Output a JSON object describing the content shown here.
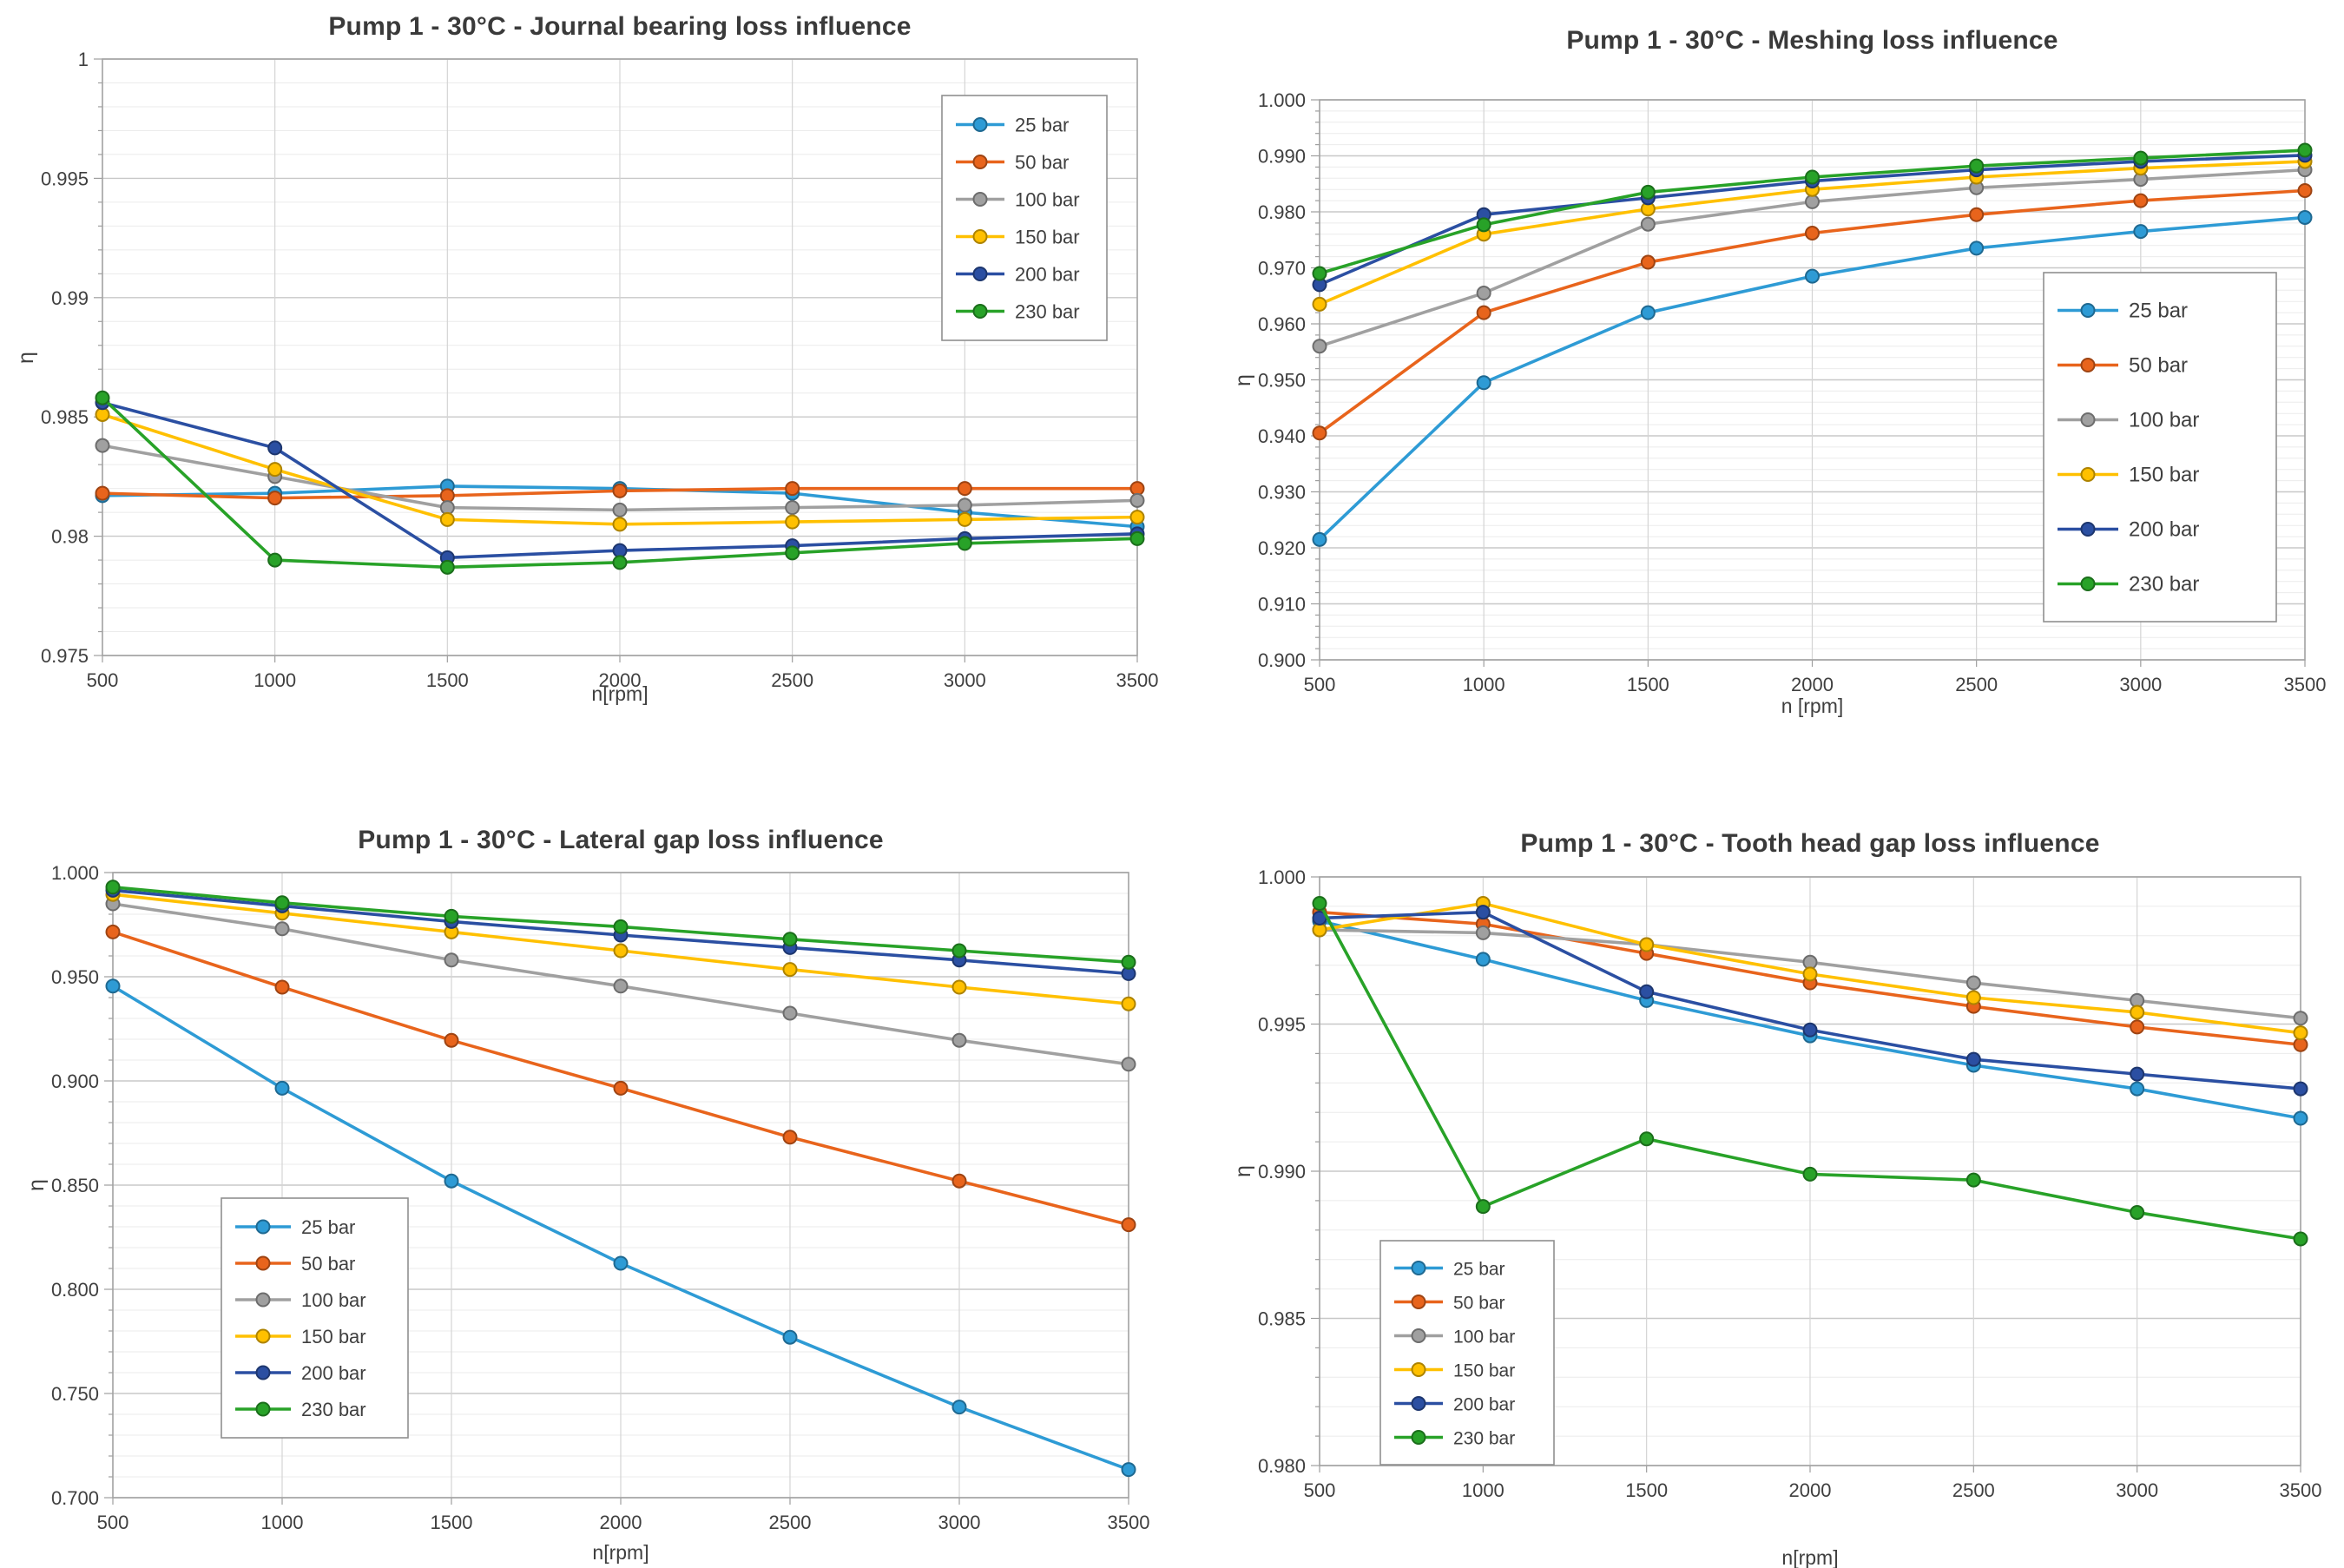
{
  "figure": {
    "background": "#ffffff",
    "text_color": "#3f3f3f",
    "gridline_major_color": "#c8c8c8",
    "gridline_minor_color": "#ebebeb",
    "gridline_vertical_color": "#d4d4d4",
    "plot_border_color": "#a3a3a3",
    "legend_border_color": "#8f8f8f"
  },
  "chart_data": [
    {
      "type": "line",
      "title": "Pump 1 - 30°C - Journal bearing loss influence",
      "xlabel": "n[rpm]",
      "ylabel": "η",
      "x": [
        500,
        1000,
        1500,
        2000,
        2500,
        3000,
        3500
      ],
      "xlim": [
        500,
        3500
      ],
      "ylim": [
        0.975,
        1.0
      ],
      "y_minor_step": 0.001,
      "grid": true,
      "legend_position": "top-right",
      "yticks": [
        {
          "v": 1.0,
          "label": "1"
        },
        {
          "v": 0.995,
          "label": "0.995"
        },
        {
          "v": 0.99,
          "label": "0.99"
        },
        {
          "v": 0.985,
          "label": "0.985"
        },
        {
          "v": 0.98,
          "label": "0.98"
        },
        {
          "v": 0.975,
          "label": "0.975"
        }
      ],
      "series": [
        {
          "name": "25 bar",
          "color": "#2E9BD5",
          "values": [
            0.9817,
            0.9818,
            0.9821,
            0.982,
            0.9818,
            0.981,
            0.9804
          ]
        },
        {
          "name": "50 bar",
          "color": "#E8641C",
          "values": [
            0.9818,
            0.9816,
            0.9817,
            0.9819,
            0.982,
            0.982,
            0.982
          ]
        },
        {
          "name": "100 bar",
          "color": "#A0A0A0",
          "values": [
            0.9838,
            0.9825,
            0.9812,
            0.9811,
            0.9812,
            0.9813,
            0.9815
          ]
        },
        {
          "name": "150 bar",
          "color": "#FFC000",
          "values": [
            0.9851,
            0.9828,
            0.9807,
            0.9805,
            0.9806,
            0.9807,
            0.9808
          ]
        },
        {
          "name": "200 bar",
          "color": "#2B4FA2",
          "values": [
            0.9856,
            0.9837,
            0.9791,
            0.9794,
            0.9796,
            0.9799,
            0.9801
          ]
        },
        {
          "name": "230 bar",
          "color": "#28A228",
          "values": [
            0.9858,
            0.979,
            0.9787,
            0.9789,
            0.9793,
            0.9797,
            0.9799
          ]
        }
      ]
    },
    {
      "type": "line",
      "title": "Pump 1 - 30°C - Meshing loss influence",
      "xlabel": "n [rpm]",
      "ylabel": "η",
      "x": [
        500,
        1000,
        1500,
        2000,
        2500,
        3000,
        3500
      ],
      "xlim": [
        500,
        3500
      ],
      "ylim": [
        0.9,
        1.0
      ],
      "y_minor_step": 0.002,
      "grid": true,
      "legend_position": "right-center",
      "yticks": [
        {
          "v": 1.0,
          "label": "1.000"
        },
        {
          "v": 0.99,
          "label": "0.990"
        },
        {
          "v": 0.98,
          "label": "0.980"
        },
        {
          "v": 0.97,
          "label": "0.970"
        },
        {
          "v": 0.96,
          "label": "0.960"
        },
        {
          "v": 0.95,
          "label": "0.950"
        },
        {
          "v": 0.94,
          "label": "0.940"
        },
        {
          "v": 0.93,
          "label": "0.930"
        },
        {
          "v": 0.92,
          "label": "0.920"
        },
        {
          "v": 0.91,
          "label": "0.910"
        },
        {
          "v": 0.9,
          "label": "0.900"
        }
      ],
      "series": [
        {
          "name": "25 bar",
          "color": "#2E9BD5",
          "values": [
            0.9215,
            0.9495,
            0.962,
            0.9685,
            0.9735,
            0.9765,
            0.979
          ]
        },
        {
          "name": "50 bar",
          "color": "#E8641C",
          "values": [
            0.9405,
            0.962,
            0.971,
            0.9762,
            0.9795,
            0.982,
            0.9838
          ]
        },
        {
          "name": "100 bar",
          "color": "#A0A0A0",
          "values": [
            0.956,
            0.9655,
            0.9778,
            0.9818,
            0.9843,
            0.9858,
            0.9875
          ]
        },
        {
          "name": "150 bar",
          "color": "#FFC000",
          "values": [
            0.9635,
            0.976,
            0.9805,
            0.984,
            0.9862,
            0.9878,
            0.989
          ]
        },
        {
          "name": "200 bar",
          "color": "#2B4FA2",
          "values": [
            0.967,
            0.9795,
            0.9825,
            0.9855,
            0.9875,
            0.989,
            0.9901
          ]
        },
        {
          "name": "230 bar",
          "color": "#28A228",
          "values": [
            0.969,
            0.9777,
            0.9835,
            0.9862,
            0.9882,
            0.9896,
            0.991
          ]
        }
      ]
    },
    {
      "type": "line",
      "title": "Pump 1 - 30°C - Lateral gap loss influence",
      "xlabel": "n[rpm]",
      "ylabel": "η",
      "x": [
        500,
        1000,
        1500,
        2000,
        2500,
        3000,
        3500
      ],
      "xlim": [
        500,
        3500
      ],
      "ylim": [
        0.7,
        1.0
      ],
      "y_minor_step": 0.01,
      "grid": true,
      "legend_position": "bottom-left",
      "yticks": [
        {
          "v": 1.0,
          "label": "1.000"
        },
        {
          "v": 0.95,
          "label": "0.950"
        },
        {
          "v": 0.9,
          "label": "0.900"
        },
        {
          "v": 0.85,
          "label": "0.850"
        },
        {
          "v": 0.8,
          "label": "0.800"
        },
        {
          "v": 0.75,
          "label": "0.750"
        },
        {
          "v": 0.7,
          "label": "0.700"
        }
      ],
      "series": [
        {
          "name": "25 bar",
          "color": "#2E9BD5",
          "values": [
            0.9455,
            0.8965,
            0.852,
            0.8125,
            0.777,
            0.7435,
            0.7135
          ]
        },
        {
          "name": "50 bar",
          "color": "#E8641C",
          "values": [
            0.9715,
            0.945,
            0.9195,
            0.8965,
            0.873,
            0.852,
            0.831
          ]
        },
        {
          "name": "100 bar",
          "color": "#A0A0A0",
          "values": [
            0.985,
            0.973,
            0.958,
            0.9455,
            0.9325,
            0.9195,
            0.908
          ]
        },
        {
          "name": "150 bar",
          "color": "#FFC000",
          "values": [
            0.9895,
            0.9805,
            0.9715,
            0.9625,
            0.9535,
            0.945,
            0.937
          ]
        },
        {
          "name": "200 bar",
          "color": "#2B4FA2",
          "values": [
            0.9915,
            0.984,
            0.9765,
            0.97,
            0.964,
            0.958,
            0.9515
          ]
        },
        {
          "name": "230 bar",
          "color": "#28A228",
          "values": [
            0.993,
            0.9855,
            0.979,
            0.974,
            0.968,
            0.9625,
            0.957
          ]
        }
      ]
    },
    {
      "type": "line",
      "title": "Pump 1 - 30°C - Tooth head gap loss influence",
      "xlabel": "n[rpm]",
      "ylabel": "η",
      "x": [
        500,
        1000,
        1500,
        2000,
        2500,
        3000,
        3500
      ],
      "xlim": [
        500,
        3500
      ],
      "ylim": [
        0.98,
        1.0
      ],
      "y_minor_step": 0.001,
      "grid": true,
      "legend_position": "bottom-left",
      "yticks": [
        {
          "v": 1.0,
          "label": "1.000"
        },
        {
          "v": 0.995,
          "label": "0.995"
        },
        {
          "v": 0.99,
          "label": "0.990"
        },
        {
          "v": 0.985,
          "label": "0.985"
        },
        {
          "v": 0.98,
          "label": "0.980"
        }
      ],
      "series": [
        {
          "name": "25 bar",
          "color": "#2E9BD5",
          "values": [
            0.9985,
            0.9972,
            0.9958,
            0.9946,
            0.9936,
            0.9928,
            0.9918
          ]
        },
        {
          "name": "50 bar",
          "color": "#E8641C",
          "values": [
            0.9988,
            0.9984,
            0.9974,
            0.9964,
            0.9956,
            0.9949,
            0.9943
          ]
        },
        {
          "name": "100 bar",
          "color": "#A0A0A0",
          "values": [
            0.9982,
            0.9981,
            0.9977,
            0.9971,
            0.9964,
            0.9958,
            0.9952
          ]
        },
        {
          "name": "150 bar",
          "color": "#FFC000",
          "values": [
            0.9982,
            0.9991,
            0.9977,
            0.9967,
            0.9959,
            0.9954,
            0.9947
          ]
        },
        {
          "name": "200 bar",
          "color": "#2B4FA2",
          "values": [
            0.9986,
            0.9988,
            0.9961,
            0.9948,
            0.9938,
            0.9933,
            0.9928
          ]
        },
        {
          "name": "230 bar",
          "color": "#28A228",
          "values": [
            0.9991,
            0.9888,
            0.9911,
            0.9899,
            0.9897,
            0.9886,
            0.9877
          ]
        }
      ]
    }
  ]
}
